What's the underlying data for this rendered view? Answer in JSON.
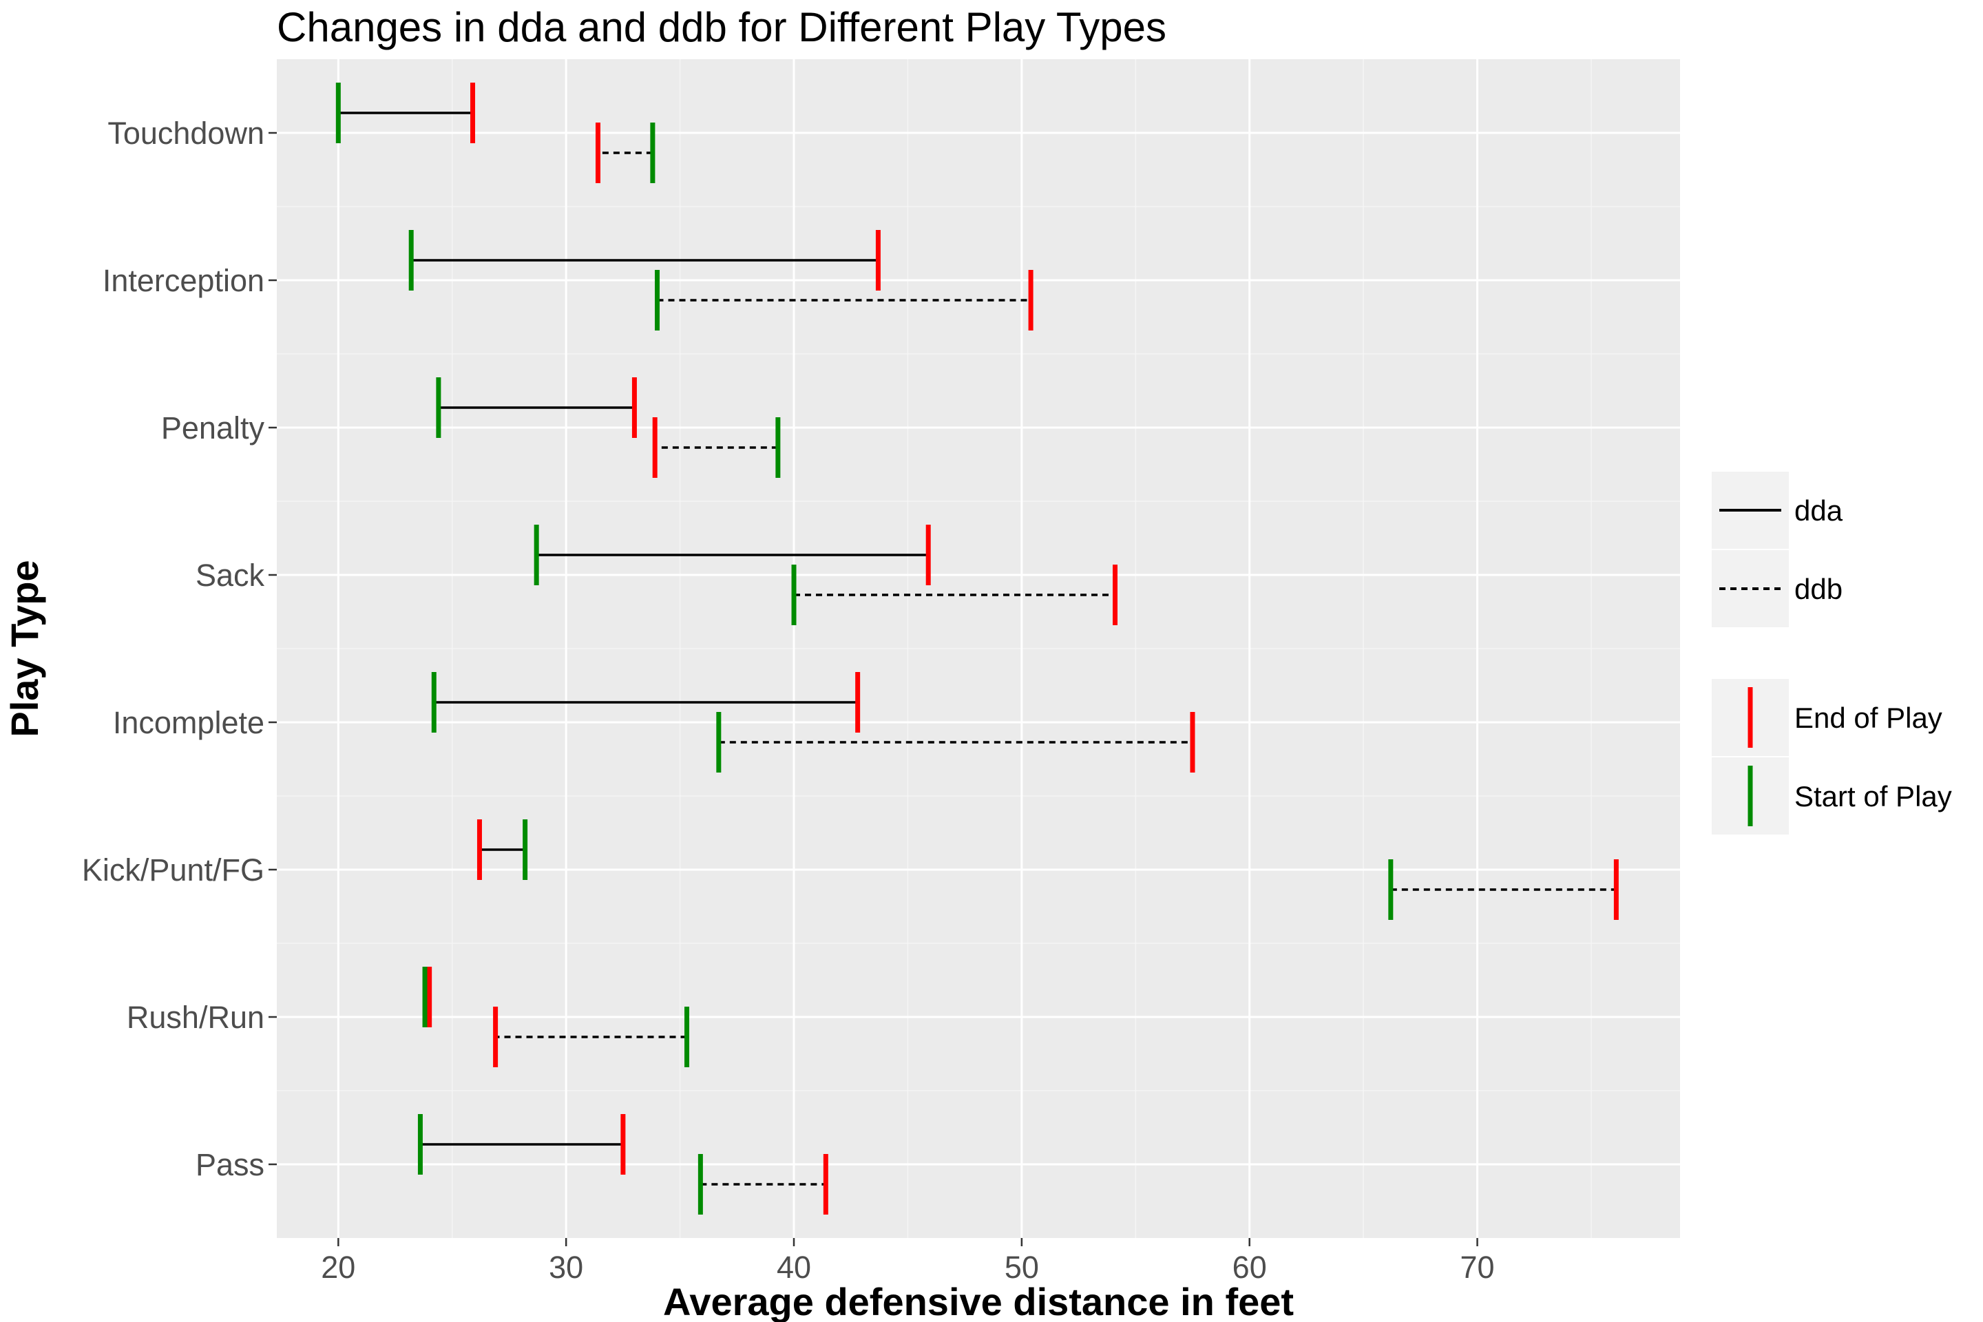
{
  "chart_data": {
    "type": "range",
    "title": "Changes in dda and ddb for Different Play Types",
    "xlabel": "Average defensive distance in feet",
    "ylabel": "Play Type",
    "xlim": [
      17.3,
      78.9
    ],
    "xticks": [
      20,
      30,
      40,
      50,
      60,
      70
    ],
    "categories": [
      "Touchdown",
      "Interception",
      "Penalty",
      "Sack",
      "Incomplete",
      "Kick/Punt/FG",
      "Rush/Run",
      "Pass"
    ],
    "series": [
      {
        "name": "dda",
        "linetype": "solid",
        "start": [
          20.0,
          23.2,
          24.4,
          28.7,
          24.2,
          28.2,
          23.8,
          23.6
        ],
        "end": [
          25.9,
          43.7,
          33.0,
          45.9,
          42.8,
          26.2,
          24.0,
          32.5
        ]
      },
      {
        "name": "ddb",
        "linetype": "dashed",
        "start": [
          33.8,
          34.0,
          39.3,
          40.0,
          36.7,
          66.2,
          35.3,
          35.9
        ],
        "end": [
          31.4,
          50.4,
          33.9,
          54.1,
          57.5,
          76.1,
          26.9,
          41.4
        ]
      }
    ],
    "markers": [
      {
        "name": "End of Play",
        "color": "#ff0000"
      },
      {
        "name": "Start of Play",
        "color": "#008b00"
      }
    ],
    "legend_position": "right",
    "grid": true,
    "panel_background": "#ebebeb"
  }
}
